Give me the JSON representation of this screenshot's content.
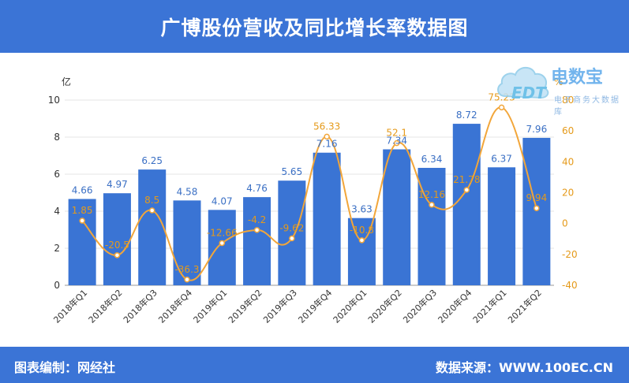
{
  "title": "广博股份营收及同比增长率数据图",
  "footer": {
    "left": "图表编制：网经社",
    "right": "数据来源：WWW.100EC.CN"
  },
  "watermark": {
    "brand": "电数宝",
    "subtitle": "电子商务大数据库",
    "logo_text": "EDT"
  },
  "colors": {
    "bar": "#3a74d4",
    "line": "#f2a63a",
    "line_label": "#e59a1a",
    "bar_label": "#3a6fc4",
    "header": "#3b74d6"
  },
  "chart_data": {
    "type": "bar",
    "categories": [
      "2018年Q1",
      "2018年Q2",
      "2018年Q3",
      "2018年Q4",
      "2019年Q1",
      "2019年Q2",
      "2019年Q3",
      "2019年Q4",
      "2020年Q1",
      "2020年Q2",
      "2020年Q3",
      "2020年Q4",
      "2021年Q1",
      "2021年Q2"
    ],
    "series": [
      {
        "type": "bar",
        "axis": "left",
        "values": [
          4.66,
          4.97,
          6.25,
          4.58,
          4.07,
          4.76,
          5.65,
          7.16,
          3.63,
          7.34,
          6.34,
          8.72,
          6.37,
          7.96
        ]
      },
      {
        "type": "line",
        "axis": "right",
        "smooth": true,
        "values": [
          1.85,
          -20.5,
          8.5,
          -36.3,
          -12.66,
          -4.2,
          -9.62,
          56.33,
          -10.8,
          52.1,
          12.16,
          21.78,
          75.23,
          9.94
        ]
      }
    ],
    "left_axis": {
      "unit_label": "亿",
      "ylim": [
        0,
        10
      ],
      "ticks": [
        "0",
        "2",
        "4",
        "6",
        "8",
        "10"
      ]
    },
    "right_axis": {
      "unit_label": "%",
      "ylim": [
        -40,
        80
      ],
      "ticks": [
        "-40",
        "-20",
        "0",
        "20",
        "40",
        "60",
        "80"
      ]
    },
    "grid": true
  }
}
